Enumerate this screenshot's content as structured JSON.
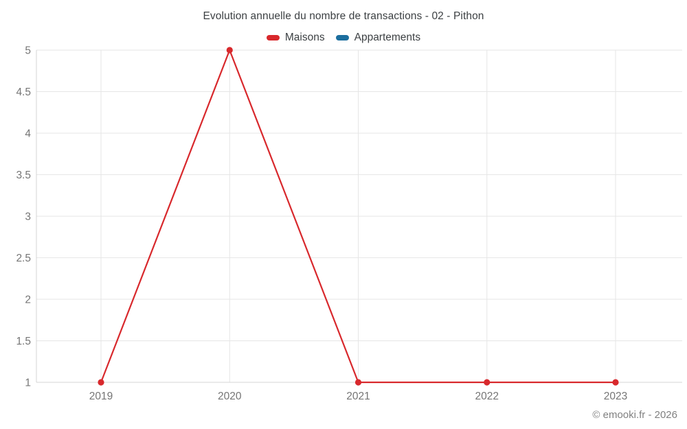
{
  "title": "Evolution annuelle du nombre de transactions - 02 - Pithon",
  "legend": [
    {
      "label": "Maisons",
      "color": "#d8282c"
    },
    {
      "label": "Appartements",
      "color": "#1c6e9e"
    }
  ],
  "footer": {
    "copyright": "© emooki.fr - 2026"
  },
  "colors": {
    "grid": "#e6e6e6",
    "axis": "#d4d4d4",
    "tick_text": "#757575"
  },
  "chart_data": {
    "type": "line",
    "categories": [
      "2019",
      "2020",
      "2021",
      "2022",
      "2023"
    ],
    "series": [
      {
        "name": "Maisons",
        "color": "#d8282c",
        "values": [
          1,
          5,
          1,
          1,
          1
        ]
      },
      {
        "name": "Appartements",
        "color": "#1c6e9e",
        "values": []
      }
    ],
    "title": "Evolution annuelle du nombre de transactions - 02 - Pithon",
    "xlabel": "",
    "ylabel": "",
    "ylim": [
      1,
      5
    ],
    "yticks": [
      1,
      1.5,
      2,
      2.5,
      3,
      3.5,
      4,
      4.5,
      5
    ],
    "grid": true,
    "legend_position": "top"
  }
}
